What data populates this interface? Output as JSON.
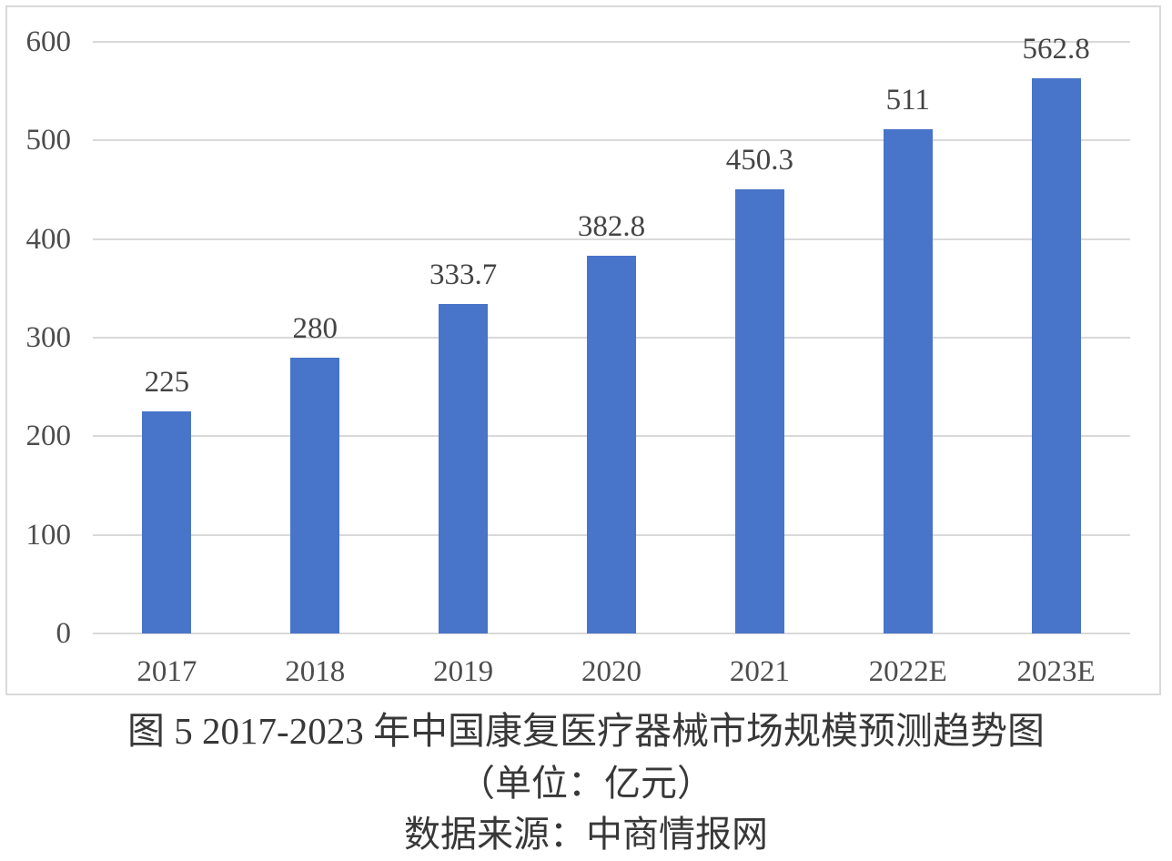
{
  "figure": {
    "caption_line1": "图 5 2017-2023 年中国康复医疗器械市场规模预测趋势图",
    "caption_line2": "（单位：亿元）",
    "caption_line3": "数据来源：中商情报网"
  },
  "chart_data": {
    "type": "bar",
    "categories": [
      "2017",
      "2018",
      "2019",
      "2020",
      "2021",
      "2022E",
      "2023E"
    ],
    "values": [
      225,
      280,
      333.7,
      382.8,
      450.3,
      511,
      562.8
    ],
    "data_labels": [
      "225",
      "280",
      "333.7",
      "382.8",
      "450.3",
      "511",
      "562.8"
    ],
    "title": "图 5 2017-2023 年中国康复医疗器械市场规模预测趋势图",
    "subtitle": "（单位：亿元）",
    "source": "数据来源：中商情报网",
    "xlabel": "",
    "ylabel": "",
    "ylim": [
      0,
      600
    ],
    "yticks": [
      0,
      100,
      200,
      300,
      400,
      500,
      600
    ],
    "grid": true,
    "legend": false,
    "colors": {
      "bar": "#4874c9",
      "gridline": "#d9d9d9",
      "axis_text": "#4d4d4d",
      "data_label_text": "#444444"
    }
  }
}
